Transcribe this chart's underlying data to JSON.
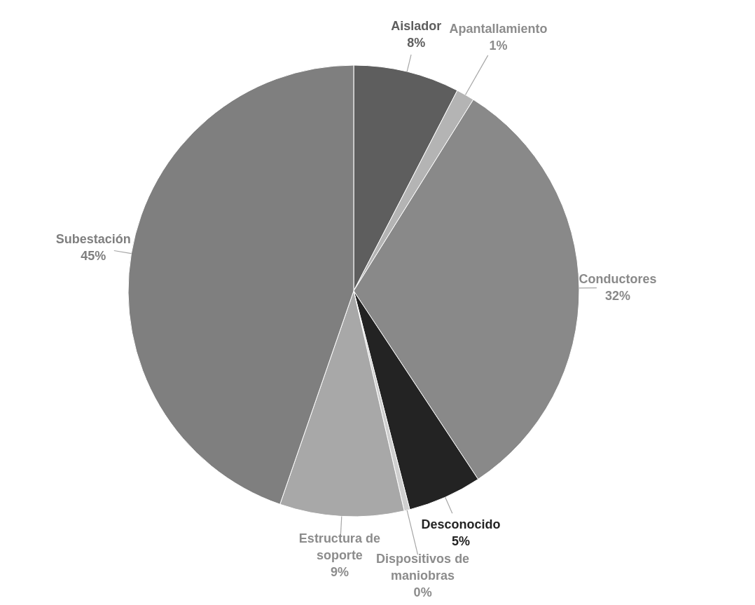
{
  "chart_data": {
    "type": "pie",
    "categories": [
      "Aislador",
      "Apantallamiento",
      "Conductores",
      "Desconocido",
      "Dispositivos de maniobras",
      "Estructura de soporte",
      "Subestación"
    ],
    "values": [
      7.6,
      1.3,
      31.8,
      5.3,
      0.4,
      8.9,
      44.7
    ],
    "value_labels": [
      "8%",
      "1%",
      "32%",
      "5%",
      "0%",
      "9%",
      "45%"
    ],
    "colors": [
      "#5e5e5e",
      "#b4b4b4",
      "#898989",
      "#232323",
      "#cfcfcf",
      "#a8a8a8",
      "#7f7f7f"
    ]
  }
}
